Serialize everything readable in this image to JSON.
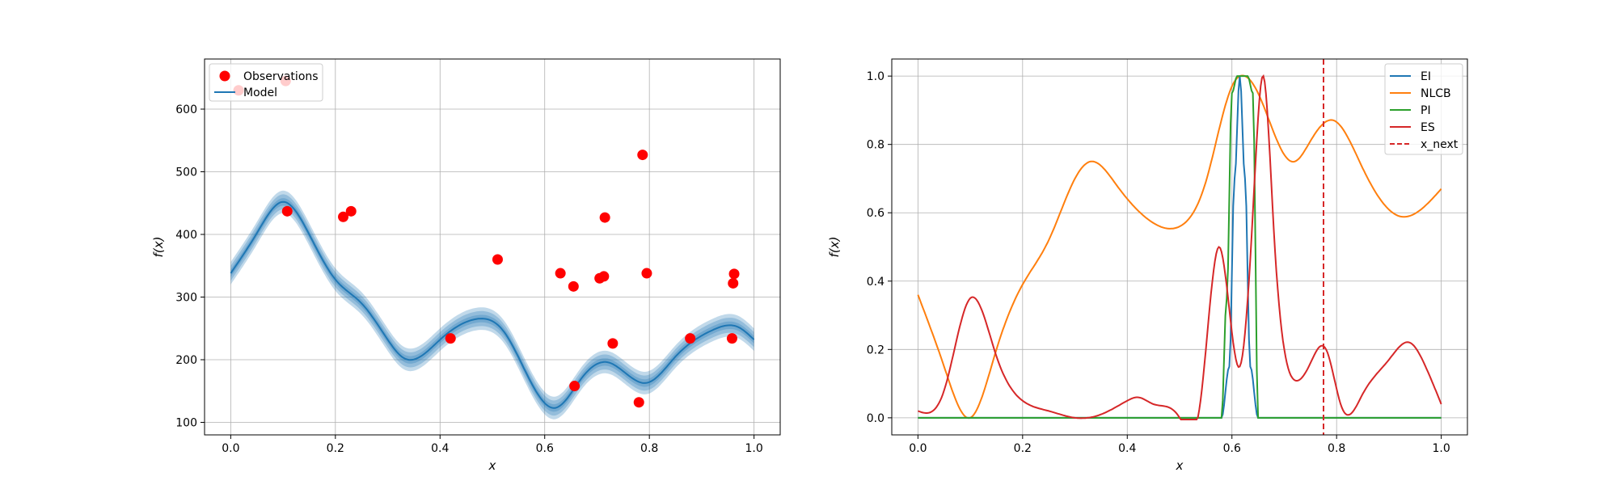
{
  "colors": {
    "observations": "#ff0000",
    "model": "#1f77b4",
    "ei": "#1f77b4",
    "nlcb": "#ff7f0e",
    "pi": "#2ca02c",
    "es": "#d62728",
    "x_next": "#d62728",
    "grid": "#b0b0b0"
  },
  "chart_data": [
    {
      "type": "line",
      "title": "",
      "xlabel": "x",
      "ylabel": "f(x)",
      "xlim": [
        -0.05,
        1.05
      ],
      "ylim": [
        80,
        680
      ],
      "xticks": [
        0.0,
        0.2,
        0.4,
        0.6,
        0.8,
        1.0
      ],
      "xtick_labels": [
        "0.0",
        "0.2",
        "0.4",
        "0.6",
        "0.8",
        "1.0"
      ],
      "yticks": [
        100,
        200,
        300,
        400,
        500,
        600
      ],
      "ytick_labels": [
        "100",
        "200",
        "300",
        "400",
        "500",
        "600"
      ],
      "grid": true,
      "legend": "upper-left",
      "observations": {
        "name": "Observations",
        "x": [
          0.015,
          0.105,
          0.108,
          0.215,
          0.23,
          0.42,
          0.51,
          0.63,
          0.655,
          0.657,
          0.705,
          0.713,
          0.715,
          0.73,
          0.78,
          0.787,
          0.795,
          0.878,
          0.958,
          0.96,
          0.962
        ],
        "y": [
          630,
          645,
          437,
          428,
          437,
          234,
          360,
          338,
          317,
          158,
          330,
          333,
          427,
          226,
          132,
          527,
          338,
          234,
          234,
          322,
          337
        ]
      },
      "model": {
        "name": "Model",
        "x": [
          0.0,
          0.05,
          0.1,
          0.15,
          0.2,
          0.25,
          0.3,
          0.33,
          0.4,
          0.47,
          0.52,
          0.57,
          0.62,
          0.67,
          0.72,
          0.795,
          0.85,
          0.92,
          0.97,
          1.0
        ],
        "y": [
          338,
          402,
          452,
          400,
          328,
          290,
          232,
          203,
          232,
          265,
          247,
          170,
          123,
          170,
          196,
          163,
          205,
          247,
          252,
          232
        ],
        "band_offsets": [
          18,
          12,
          6
        ]
      }
    },
    {
      "type": "line",
      "title": "",
      "xlabel": "x",
      "ylabel": "f(x)",
      "xlim": [
        -0.05,
        1.05
      ],
      "ylim": [
        -0.05,
        1.05
      ],
      "xticks": [
        0.0,
        0.2,
        0.4,
        0.6,
        0.8,
        1.0
      ],
      "xtick_labels": [
        "0.0",
        "0.2",
        "0.4",
        "0.6",
        "0.8",
        "1.0"
      ],
      "yticks": [
        0.0,
        0.2,
        0.4,
        0.6,
        0.8,
        1.0
      ],
      "ytick_labels": [
        "0.0",
        "0.2",
        "0.4",
        "0.6",
        "0.8",
        "1.0"
      ],
      "grid": true,
      "legend": "upper-right",
      "x_next": 0.775,
      "series": [
        {
          "name": "EI",
          "x": [
            0.0,
            0.58,
            0.595,
            0.605,
            0.615,
            0.625,
            0.635,
            0.65,
            1.0
          ],
          "y": [
            0,
            0,
            0.15,
            0.7,
            1.0,
            0.7,
            0.15,
            0,
            0
          ]
        },
        {
          "name": "NLCB",
          "x": [
            0.0,
            0.05,
            0.1,
            0.15,
            0.2,
            0.25,
            0.3,
            0.33,
            0.38,
            0.45,
            0.5,
            0.55,
            0.6,
            0.625,
            0.65,
            0.7,
            0.72,
            0.75,
            0.795,
            0.85,
            0.92,
            1.0
          ],
          "y": [
            0.36,
            0.15,
            0.0,
            0.2,
            0.39,
            0.52,
            0.7,
            0.75,
            0.68,
            0.57,
            0.56,
            0.69,
            0.97,
            1.0,
            0.95,
            0.77,
            0.75,
            0.81,
            0.87,
            0.73,
            0.59,
            0.67
          ]
        },
        {
          "name": "PI",
          "x": [
            0.0,
            0.58,
            0.59,
            0.6,
            0.61,
            0.63,
            0.64,
            0.65,
            1.0
          ],
          "y": [
            0,
            0,
            0.35,
            0.95,
            1.0,
            1.0,
            0.95,
            0,
            0
          ]
        },
        {
          "name": "ES",
          "x": [
            0.0,
            0.05,
            0.1,
            0.15,
            0.2,
            0.25,
            0.3,
            0.35,
            0.4,
            0.42,
            0.45,
            0.5,
            0.54,
            0.575,
            0.6,
            0.615,
            0.64,
            0.66,
            0.68,
            0.7,
            0.72,
            0.75,
            0.78,
            0.81,
            0.85,
            0.9,
            0.94,
            0.97,
            1.0
          ],
          "y": [
            0.02,
            0.08,
            0.35,
            0.18,
            0.05,
            0.02,
            0.0,
            0.01,
            0.05,
            0.06,
            0.04,
            0.0,
            0.05,
            0.5,
            0.25,
            0.15,
            0.6,
            1.0,
            0.55,
            0.2,
            0.11,
            0.16,
            0.2,
            0.03,
            0.07,
            0.17,
            0.22,
            0.15,
            0.04
          ]
        }
      ],
      "legend_entries": [
        "EI",
        "NLCB",
        "PI",
        "ES",
        "x_next"
      ]
    }
  ]
}
